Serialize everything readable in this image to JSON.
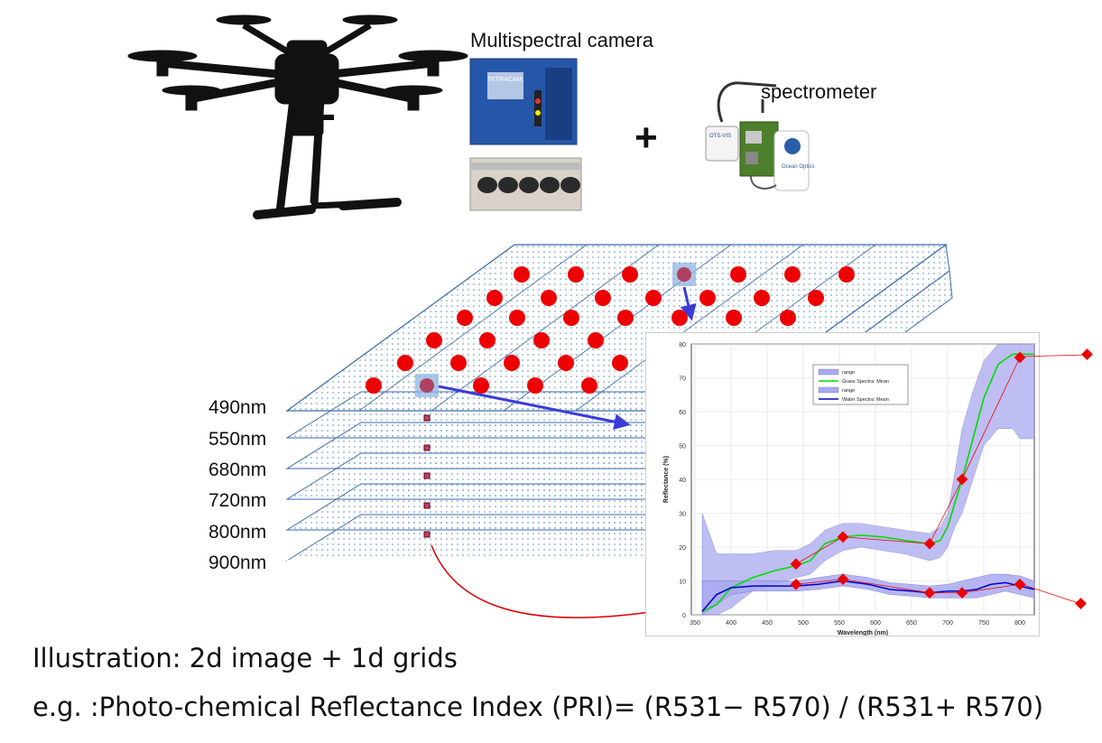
{
  "labels": {
    "camera": "Multispectral camera",
    "spectrometer": "spectrometer",
    "plus": "+"
  },
  "bands": [
    "490nm",
    "550nm",
    "680nm",
    "720nm",
    "800nm",
    "900nm"
  ],
  "caption": {
    "line1": "Illustration: 2d image + 1d grids",
    "line2": "e.g. :Photo-chemical Reflectance Index (PRI)= (R531− R570) / (R531+ R570)"
  },
  "device_text": {
    "camera_brand": "TETRACAM",
    "spectrometer_box": "Ocean Optics",
    "spectrometer_tag": "OTS-VIS"
  },
  "colors": {
    "grid_line": "#3b6aa8",
    "grid_dot": "#7aa6d6",
    "sample_dot": "#ee0000",
    "highlight": "#8fb4e0",
    "arrow_blue": "#3b3bd8",
    "arrow_red": "#dd0000",
    "grass_mean": "#00dd00",
    "water_mean": "#0000cc",
    "range_fill": "#a9a9f0",
    "marker": "#ee0000"
  },
  "chart_data": {
    "type": "line",
    "title": "",
    "xlabel": "Wavelength (nm)",
    "ylabel": "Reflectance (%)",
    "xlim": [
      345,
      820
    ],
    "ylim": [
      0,
      80
    ],
    "x_ticks": [
      350,
      400,
      450,
      500,
      550,
      600,
      650,
      700,
      750,
      800
    ],
    "y_ticks": [
      0,
      10,
      20,
      30,
      40,
      50,
      60,
      70,
      80
    ],
    "legend": [
      "range",
      "Grass Spectra: Mean",
      "range",
      "Water Spectra: Mean"
    ],
    "legend_position": "top-left",
    "series": [
      {
        "name": "Grass Spectra: Mean",
        "x": [
          360,
          380,
          400,
          430,
          460,
          490,
          510,
          530,
          555,
          580,
          610,
          640,
          675,
          690,
          700,
          710,
          720,
          735,
          750,
          770,
          790,
          800,
          815,
          820
        ],
        "values": [
          1,
          3,
          8,
          11,
          13,
          14.5,
          16,
          21,
          23,
          23.5,
          23,
          22,
          21,
          22,
          26,
          33,
          40,
          52,
          64,
          74,
          77,
          77,
          77,
          77
        ]
      },
      {
        "name": "Water Spectra: Mean",
        "x": [
          360,
          380,
          400,
          430,
          460,
          490,
          520,
          555,
          590,
          620,
          650,
          675,
          700,
          720,
          740,
          760,
          780,
          800,
          820
        ],
        "values": [
          1,
          6,
          8,
          8.5,
          8.5,
          8.5,
          9,
          10,
          9,
          7.5,
          7,
          6.5,
          7,
          7,
          7.5,
          9,
          9.5,
          8.5,
          7.5
        ]
      },
      {
        "name": "Grass range",
        "x": [
          360,
          380,
          400,
          430,
          460,
          490,
          510,
          530,
          555,
          580,
          610,
          640,
          675,
          690,
          700,
          710,
          720,
          735,
          750,
          770,
          790,
          800,
          815,
          820
        ],
        "upper": [
          30,
          18,
          18,
          18,
          19,
          19,
          21,
          25,
          27,
          27,
          26,
          25,
          24,
          26,
          30,
          42,
          55,
          66,
          75,
          80,
          80,
          80,
          80,
          80
        ],
        "lower": [
          0,
          0,
          2,
          7,
          9,
          11,
          12,
          16,
          19,
          20,
          19,
          18,
          16,
          17,
          20,
          26,
          30,
          40,
          50,
          55,
          55,
          52,
          52,
          52
        ]
      },
      {
        "name": "Water range",
        "x": [
          360,
          380,
          400,
          430,
          460,
          490,
          520,
          555,
          590,
          620,
          650,
          675,
          700,
          720,
          740,
          760,
          780,
          800,
          820
        ],
        "upper": [
          10,
          10,
          10,
          10,
          10,
          10,
          11,
          12,
          11,
          9.5,
          9,
          8.5,
          9,
          10,
          11,
          12,
          12,
          11.5,
          10
        ],
        "lower": [
          0,
          3,
          6,
          7,
          7,
          7,
          7.5,
          8.5,
          7.5,
          6,
          5.5,
          5,
          5,
          5,
          5,
          6,
          7,
          6,
          5
        ]
      }
    ],
    "markers": [
      {
        "series": "grass",
        "x": [
          490,
          555,
          675,
          720,
          800
        ],
        "values": [
          15,
          23,
          21,
          40,
          76
        ]
      },
      {
        "series": "water",
        "x": [
          490,
          555,
          675,
          720,
          800
        ],
        "values": [
          9,
          10.5,
          6.5,
          6.5,
          9
        ]
      }
    ]
  }
}
